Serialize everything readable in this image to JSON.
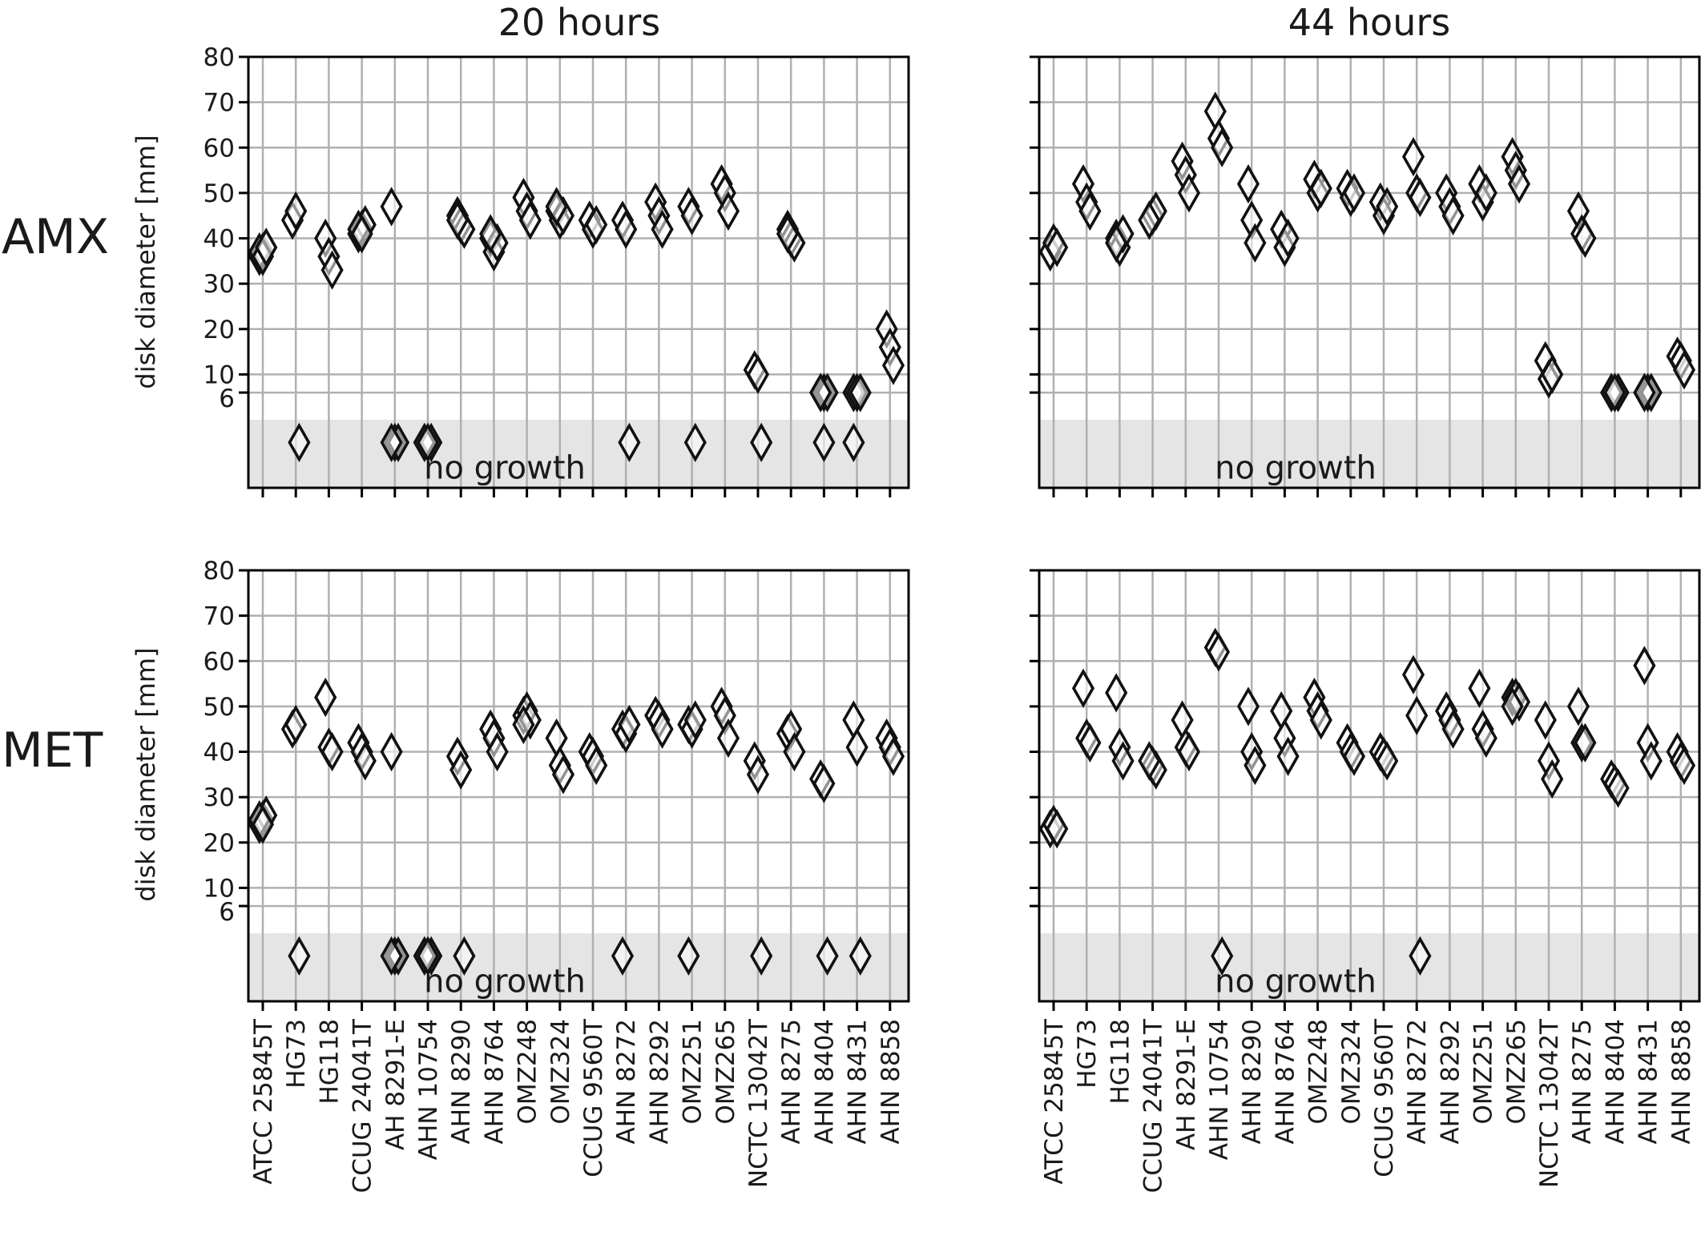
{
  "colors": {
    "grid": "#b0b0b0",
    "axes": "#000000",
    "no_growth_band": "#e5e5e5",
    "marker_fill": "#ffffff",
    "marker_edge": "#111111"
  },
  "chart_data": {
    "type": "scatter",
    "marker": "thin-diamond",
    "columns": [
      "20 hours",
      "44 hours"
    ],
    "rows": [
      "AMX",
      "MET"
    ],
    "ylabel": "disk diameter [mm]",
    "yticks": [
      6,
      10,
      20,
      30,
      40,
      50,
      60,
      70,
      80
    ],
    "ylim": [
      -15,
      80
    ],
    "no_growth_band": [
      -15,
      0
    ],
    "no_growth_label": "no growth",
    "no_growth_value": -5,
    "grid": true,
    "strains": [
      "ATCC 25845T",
      "HG73",
      "HG118",
      "CCUG 24041T",
      "AH 8291-E",
      "AHN 10754",
      "AHN 8290",
      "AHN 8764",
      "OMZ248",
      "OMZ324",
      "CCUG 9560T",
      "AHN 8272",
      "AHN 8292",
      "OMZ251",
      "OMZ265",
      "NCTC 13042T",
      "AHN 8275",
      "AHN 8404",
      "AHN 8431",
      "AHN 8858"
    ],
    "panels": [
      {
        "row": "AMX",
        "column": "20 hours",
        "points": [
          [
            [
              36,
              37,
              38,
              37,
              36,
              38
            ]
          ],
          [
            [
              44,
              46
            ],
            [
              "ng"
            ]
          ],
          [
            [
              40,
              36,
              33
            ]
          ],
          [
            [
              41,
              42,
              43,
              42,
              41
            ]
          ],
          [
            [
              47
            ],
            [
              "ng",
              "ng",
              "ng"
            ]
          ],
          [
            [
              "ng",
              "ng",
              "ng",
              "ng",
              "ng"
            ]
          ],
          [
            [
              45,
              43,
              42,
              44
            ]
          ],
          [
            [
              40,
              37,
              39,
              41
            ]
          ],
          [
            [
              49,
              46,
              44
            ]
          ],
          [
            [
              46,
              44,
              45,
              47
            ]
          ],
          [
            [
              44,
              42,
              43
            ]
          ],
          [
            [
              44,
              42
            ],
            [
              "ng"
            ]
          ],
          [
            [
              48,
              45,
              42
            ]
          ],
          [
            [
              47,
              45
            ],
            [
              "ng"
            ]
          ],
          [
            [
              52,
              50,
              46
            ]
          ],
          [
            [
              11,
              10
            ],
            [
              "ng"
            ]
          ],
          [
            [
              42,
              40,
              39,
              41
            ]
          ],
          [
            [
              6,
              6,
              6,
              6
            ],
            [
              "ng"
            ]
          ],
          [
            [
              6,
              6,
              6
            ],
            [
              "ng"
            ]
          ],
          [
            [
              20,
              16,
              12
            ]
          ]
        ]
      },
      {
        "row": "AMX",
        "column": "44 hours",
        "points": [
          [
            [
              37,
              39,
              38
            ]
          ],
          [
            [
              52,
              48,
              46
            ]
          ],
          [
            [
              40,
              38,
              41,
              39
            ]
          ],
          [
            [
              44,
              45,
              46,
              44
            ]
          ],
          [
            [
              57,
              54,
              50
            ]
          ],
          [
            [
              68,
              62,
              60
            ]
          ],
          [
            [
              52,
              44,
              39
            ]
          ],
          [
            [
              42,
              38,
              40
            ]
          ],
          [
            [
              53,
              50,
              51
            ]
          ],
          [
            [
              51,
              49,
              50
            ]
          ],
          [
            [
              48,
              45,
              47
            ]
          ],
          [
            [
              58,
              50,
              49
            ]
          ],
          [
            [
              50,
              47,
              45
            ]
          ],
          [
            [
              52,
              48,
              50
            ]
          ],
          [
            [
              58,
              55,
              52
            ]
          ],
          [
            [
              13,
              9,
              10
            ]
          ],
          [
            [
              46,
              41,
              40
            ]
          ],
          [
            [
              6,
              6,
              6,
              6,
              6
            ]
          ],
          [
            [
              6,
              6,
              6,
              6
            ]
          ],
          [
            [
              14,
              13,
              11
            ]
          ]
        ]
      },
      {
        "row": "MET",
        "column": "20 hours",
        "points": [
          [
            [
              24,
              25,
              26,
              25,
              24
            ]
          ],
          [
            [
              45,
              46
            ],
            [
              "ng"
            ]
          ],
          [
            [
              52,
              41,
              40
            ]
          ],
          [
            [
              42,
              40,
              38
            ]
          ],
          [
            [
              40
            ],
            [
              "ng",
              "ng",
              "ng"
            ]
          ],
          [
            [
              "ng",
              "ng",
              "ng",
              "ng",
              "ng"
            ]
          ],
          [
            [
              39,
              36
            ],
            [
              "ng"
            ]
          ],
          [
            [
              45,
              43,
              40
            ]
          ],
          [
            [
              48,
              49,
              47,
              46
            ]
          ],
          [
            [
              43,
              37,
              35
            ]
          ],
          [
            [
              40,
              39,
              37
            ]
          ],
          [
            [
              45,
              44,
              46
            ],
            [
              "ng"
            ]
          ],
          [
            [
              48,
              47,
              45
            ]
          ],
          [
            [
              46,
              45,
              47
            ],
            [
              "ng"
            ]
          ],
          [
            [
              50,
              48,
              43
            ]
          ],
          [
            [
              38,
              35
            ],
            [
              "ng"
            ]
          ],
          [
            [
              44,
              45,
              40
            ]
          ],
          [
            [
              34,
              33
            ],
            [
              "ng"
            ]
          ],
          [
            [
              47,
              41
            ],
            [
              "ng"
            ]
          ],
          [
            [
              43,
              41,
              39
            ]
          ]
        ]
      },
      {
        "row": "MET",
        "column": "44 hours",
        "points": [
          [
            [
              23,
              24,
              23
            ]
          ],
          [
            [
              54,
              43,
              42
            ]
          ],
          [
            [
              53,
              41,
              38
            ]
          ],
          [
            [
              38,
              37,
              36,
              38
            ]
          ],
          [
            [
              47,
              41,
              40
            ]
          ],
          [
            [
              63,
              62
            ],
            [
              "ng"
            ]
          ],
          [
            [
              50,
              40,
              37
            ]
          ],
          [
            [
              49,
              43,
              39
            ]
          ],
          [
            [
              52,
              49,
              47
            ]
          ],
          [
            [
              42,
              40,
              39
            ]
          ],
          [
            [
              40,
              39,
              38
            ]
          ],
          [
            [
              57,
              48
            ],
            [
              "ng"
            ]
          ],
          [
            [
              49,
              47,
              45
            ]
          ],
          [
            [
              54,
              45,
              43
            ]
          ],
          [
            [
              52,
              52,
              51,
              50
            ]
          ],
          [
            [
              47,
              38,
              34
            ]
          ],
          [
            [
              50,
              42,
              42
            ]
          ],
          [
            [
              34,
              33,
              32
            ]
          ],
          [
            [
              59,
              42,
              38
            ]
          ],
          [
            [
              40,
              38,
              37
            ]
          ]
        ]
      }
    ]
  }
}
